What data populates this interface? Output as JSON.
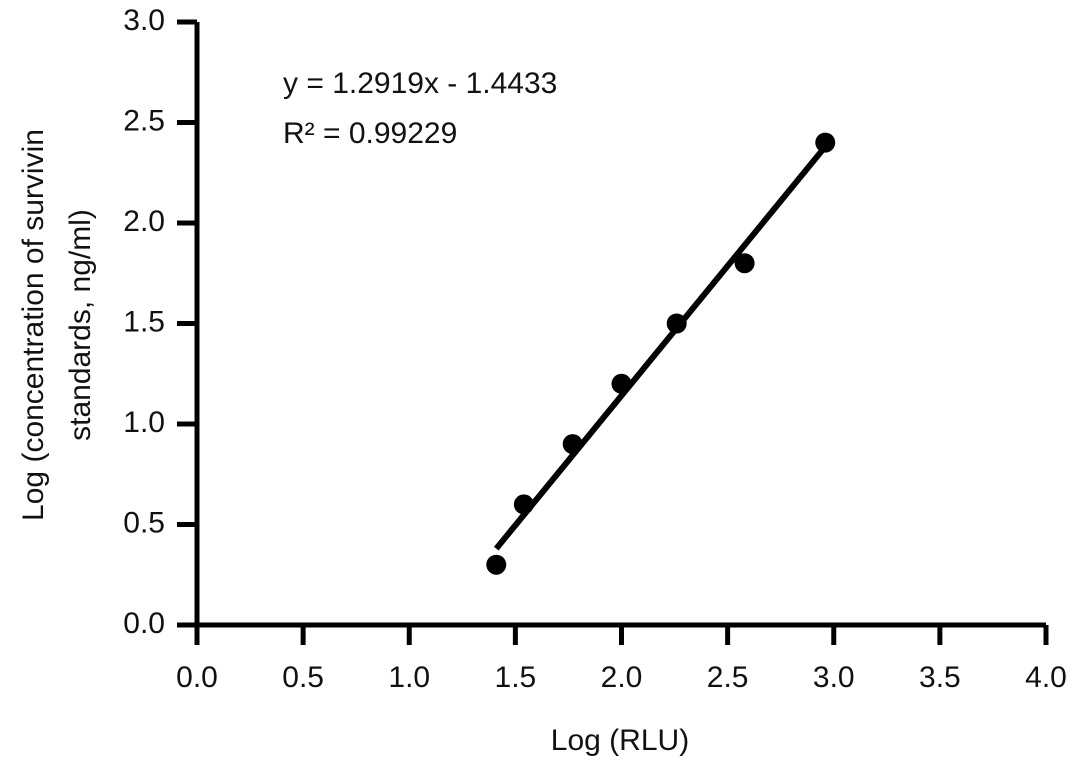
{
  "chart_data": {
    "type": "scatter",
    "xlabel": "Log (RLU)",
    "ylabel": [
      "Log (concentration of survivin",
      "standards, ng/ml)"
    ],
    "annotations": [
      "y = 1.2919x - 1.4433",
      "R² = 0.99229"
    ],
    "series": [
      {
        "color": "#000000",
        "x": [
          1.41,
          1.54,
          1.77,
          2.0,
          2.26,
          2.58,
          2.96
        ],
        "values": [
          0.3,
          0.6,
          0.9,
          1.2,
          1.5,
          1.8,
          2.4
        ]
      },
      {
        "color": "#000000",
        "x": [
          1.41,
          2.96
        ],
        "values": [
          0.38,
          2.38
        ],
        "line": true
      }
    ],
    "xlim": [
      0,
      4
    ],
    "ylim": [
      0,
      3
    ],
    "xticks": [
      {
        "value": 0,
        "label": "0.0"
      },
      0.5,
      {
        "value": 1,
        "label": "1.0"
      },
      1.5,
      {
        "value": 2,
        "label": "2.0"
      },
      2.5,
      {
        "value": 3,
        "label": "3.0"
      },
      3.5,
      {
        "value": 4,
        "label": "4.0"
      }
    ],
    "yticks": [
      {
        "value": 0,
        "label": "0.0"
      },
      0.5,
      {
        "value": 1,
        "label": "1.0"
      },
      1.5,
      {
        "value": 2,
        "label": "2.0"
      },
      2.5,
      {
        "value": 3,
        "label": "3.0"
      }
    ],
    "grid": false
  }
}
